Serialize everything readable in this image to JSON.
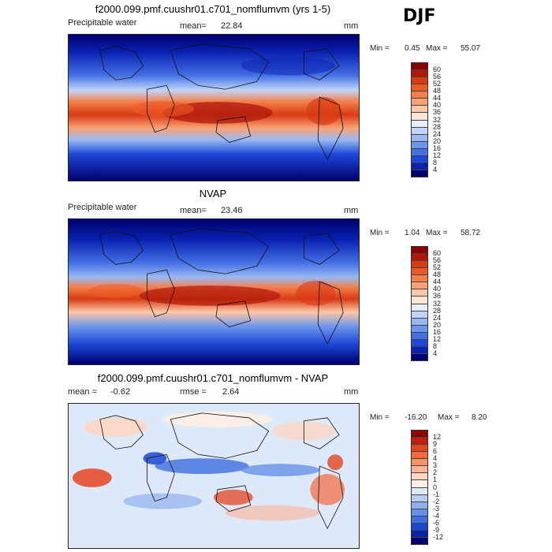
{
  "season": "DJF",
  "panels": [
    {
      "title": "f2000.099.pmf.cuushr01.c701_nomflumvm (yrs 1-5)",
      "left_label": "Precipitable water",
      "stat_label": "mean=",
      "stat_value": "22.84",
      "stat2_label": "",
      "stat2_value": "",
      "unit": "mm",
      "min_label": "Min =",
      "min_value": "0.45",
      "max_label": "Max =",
      "max_value": "55.07",
      "colorbar_levels": [
        "60",
        "56",
        "52",
        "48",
        "44",
        "40",
        "36",
        "32",
        "28",
        "24",
        "20",
        "16",
        "12",
        "8",
        "4"
      ],
      "colorbar_colors": [
        "#8b0000",
        "#b0180c",
        "#d83a14",
        "#ee5a24",
        "#f57e4a",
        "#f9a276",
        "#fcc8a8",
        "#fbe6d6",
        "#e6eefa",
        "#bfd4f6",
        "#99b8f2",
        "#6e95ec",
        "#4470e4",
        "#1d48d8",
        "#0a22b2",
        "#00006e"
      ]
    },
    {
      "title": "NVAP",
      "left_label": "Precipitable water",
      "stat_label": "mean=",
      "stat_value": "23.46",
      "stat2_label": "",
      "stat2_value": "",
      "unit": "mm",
      "min_label": "Min =",
      "min_value": "1.04",
      "max_label": "Max =",
      "max_value": "58.72",
      "colorbar_levels": [
        "60",
        "56",
        "52",
        "48",
        "44",
        "40",
        "36",
        "32",
        "28",
        "24",
        "20",
        "16",
        "12",
        "8",
        "4"
      ],
      "colorbar_colors": [
        "#8b0000",
        "#b0180c",
        "#d83a14",
        "#ee5a24",
        "#f57e4a",
        "#f9a276",
        "#fcc8a8",
        "#fbe6d6",
        "#e6eefa",
        "#bfd4f6",
        "#99b8f2",
        "#6e95ec",
        "#4470e4",
        "#1d48d8",
        "#0a22b2",
        "#00006e"
      ]
    },
    {
      "title": "f2000.099.pmf.cuushr01.c701_nomflumvm - NVAP",
      "left_label": "mean =",
      "left_value": "-0.62",
      "stat_label": "rmse =",
      "stat_value": "2.64",
      "unit": "mm",
      "min_label": "Min =",
      "min_value": "-16.20",
      "max_label": "Max =",
      "max_value": "8.20",
      "colorbar_levels": [
        "12",
        "9",
        "6",
        "4",
        "3",
        "2",
        "1",
        "0",
        "-1",
        "-2",
        "-3",
        "-4",
        "-6",
        "-9",
        "-12"
      ],
      "colorbar_colors": [
        "#8b0000",
        "#c41e10",
        "#e54420",
        "#f46a3c",
        "#f89068",
        "#fbb496",
        "#fdd6c2",
        "#fdeee4",
        "#dde8f8",
        "#b8cef4",
        "#90b0ee",
        "#6690e8",
        "#3e6ee0",
        "#1d46d0",
        "#0a22aa",
        "#00006e"
      ]
    }
  ]
}
